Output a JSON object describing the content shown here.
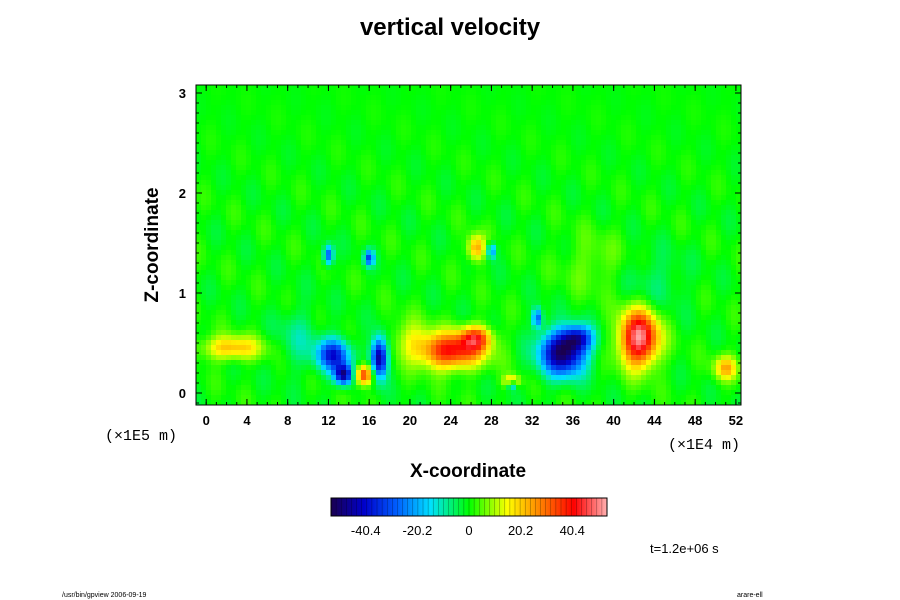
{
  "chart_data": {
    "type": "heatmap",
    "title": "vertical velocity",
    "xlabel": "X-coordinate",
    "ylabel": "Z-coordinate",
    "x_unit": "(×1E4 m)",
    "y_unit": "(×1E5 m)",
    "xlim": [
      -1,
      52.5
    ],
    "ylim": [
      -0.12,
      3.08
    ],
    "x_ticks": [
      "0",
      "4",
      "8",
      "12",
      "16",
      "20",
      "24",
      "28",
      "32",
      "36",
      "40",
      "44",
      "48",
      "52"
    ],
    "y_ticks": [
      "0",
      "1",
      "2",
      "3"
    ],
    "colorbar": {
      "ticks": [
        "-40.4",
        "-20.2",
        "0",
        "20.2",
        "40.4"
      ],
      "range": [
        -54,
        54
      ]
    },
    "time_label": "t=1.2e+06 s",
    "features": [
      {
        "x": 2.5,
        "z": 0.45,
        "value": 22,
        "sx": 3.0,
        "sz": 0.12
      },
      {
        "x": 12.5,
        "z": 0.38,
        "value": -38,
        "sx": 1.6,
        "sz": 0.16
      },
      {
        "x": 13.5,
        "z": 0.18,
        "value": -45,
        "sx": 0.9,
        "sz": 0.1
      },
      {
        "x": 15.5,
        "z": 0.18,
        "value": 38,
        "sx": 0.9,
        "sz": 0.1
      },
      {
        "x": 17.0,
        "z": 0.35,
        "value": -50,
        "sx": 0.8,
        "sz": 0.2
      },
      {
        "x": 24.0,
        "z": 0.42,
        "value": 40,
        "sx": 3.2,
        "sz": 0.18
      },
      {
        "x": 26.5,
        "z": 0.55,
        "value": 30,
        "sx": 1.5,
        "sz": 0.12
      },
      {
        "x": 30.0,
        "z": 0.12,
        "value": 22,
        "sx": 0.8,
        "sz": 0.06
      },
      {
        "x": 32.5,
        "z": 0.75,
        "value": -30,
        "sx": 0.5,
        "sz": 0.1
      },
      {
        "x": 35.0,
        "z": 0.4,
        "value": -52,
        "sx": 2.2,
        "sz": 0.22
      },
      {
        "x": 36.5,
        "z": 0.55,
        "value": -30,
        "sx": 1.5,
        "sz": 0.12
      },
      {
        "x": 42.5,
        "z": 0.55,
        "value": 52,
        "sx": 1.9,
        "sz": 0.28
      },
      {
        "x": 51.0,
        "z": 0.25,
        "value": 22,
        "sx": 1.2,
        "sz": 0.12
      },
      {
        "x": 12.0,
        "z": 1.38,
        "value": -30,
        "sx": 0.5,
        "sz": 0.1
      },
      {
        "x": 16.0,
        "z": 1.35,
        "value": -30,
        "sx": 0.5,
        "sz": 0.08
      },
      {
        "x": 26.5,
        "z": 1.45,
        "value": 25,
        "sx": 0.9,
        "sz": 0.13
      },
      {
        "x": 28.0,
        "z": 1.42,
        "value": -25,
        "sx": 0.45,
        "sz": 0.08
      },
      {
        "x": 30.0,
        "z": 0.08,
        "value": -25,
        "sx": 0.4,
        "sz": 0.05
      },
      {
        "x": 20.0,
        "z": 0.55,
        "value": 10,
        "sx": 2.0,
        "sz": 0.2
      },
      {
        "x": 9.0,
        "z": 0.55,
        "value": -8,
        "sx": 2.0,
        "sz": 0.3
      },
      {
        "x": 44.0,
        "z": 1.1,
        "value": -6,
        "sx": 3.0,
        "sz": 0.3
      },
      {
        "x": 38.0,
        "z": 1.3,
        "value": 6,
        "sx": 3.0,
        "sz": 0.3
      }
    ]
  },
  "footer": {
    "left": "/usr/bin/gpview 2006-09-19",
    "right": "arare-ell"
  }
}
